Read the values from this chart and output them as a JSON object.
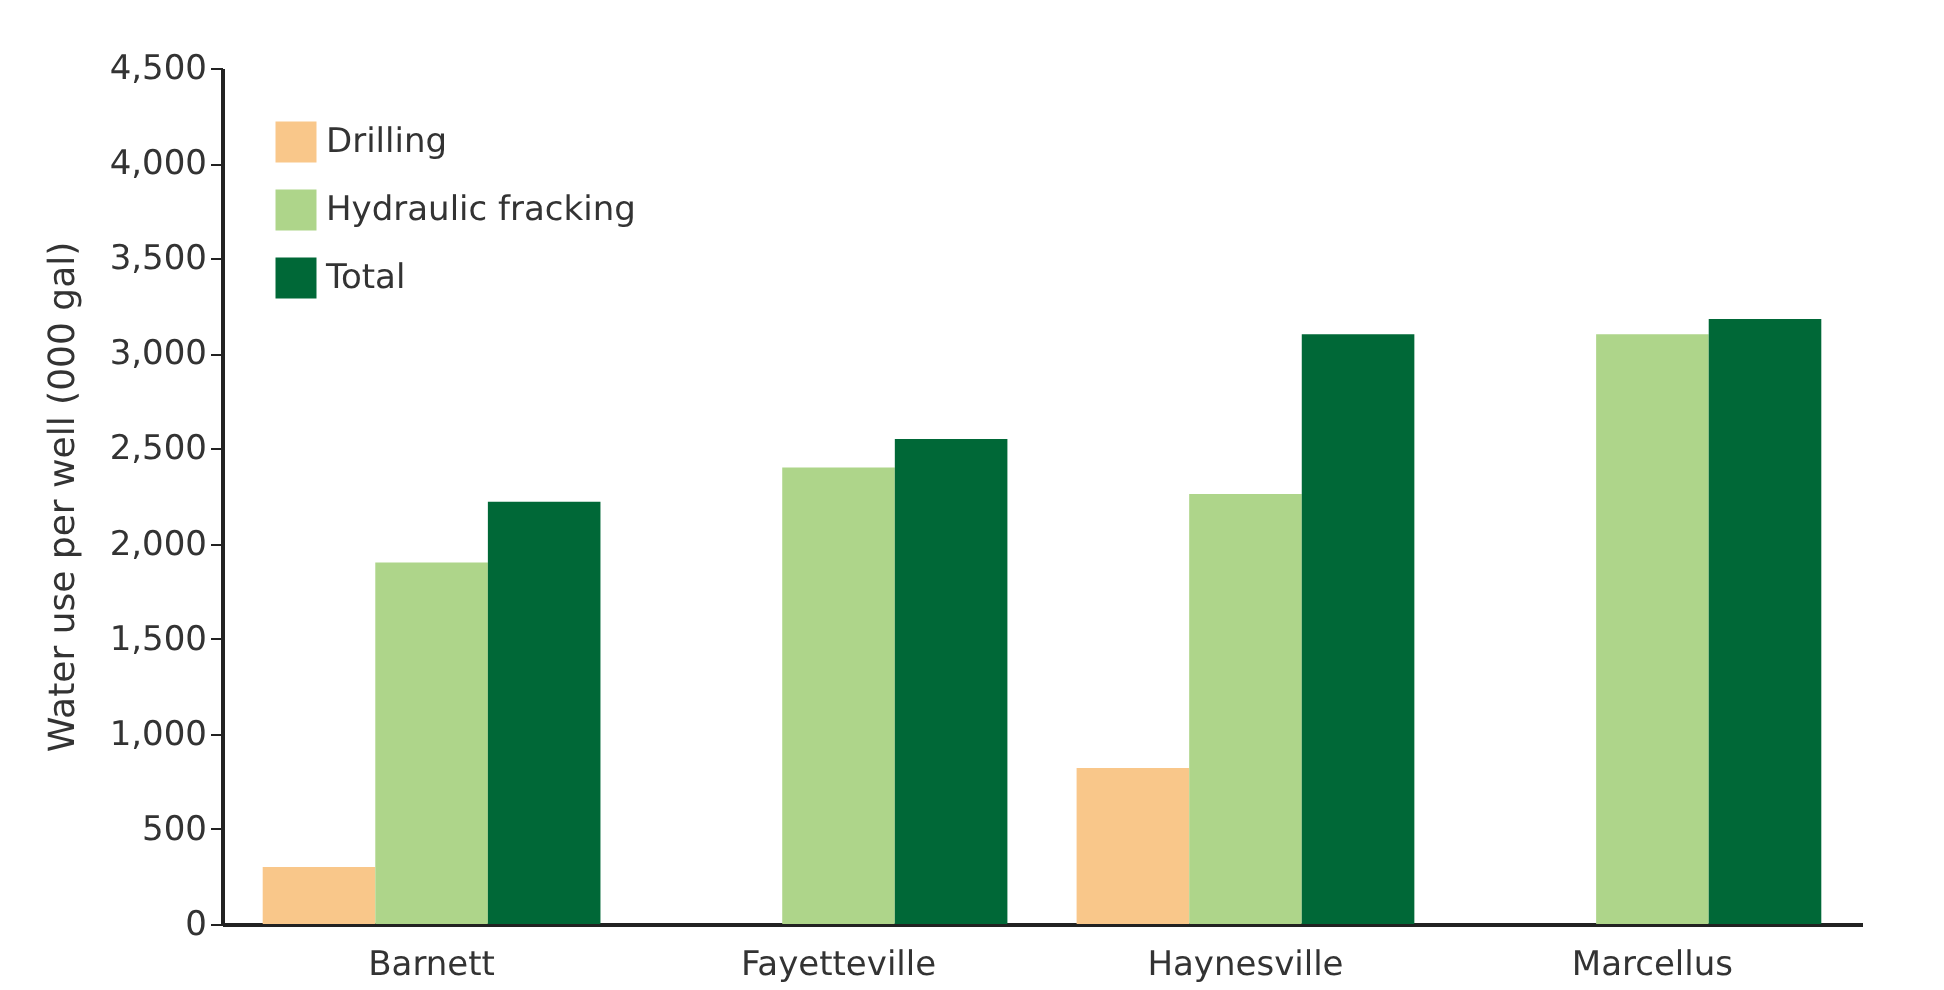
{
  "chart_data": {
    "type": "bar",
    "ylabel": "Water use per well (000 gal)",
    "categories": [
      "Barnett",
      "Fayetteville",
      "Haynesville",
      "Marcellus"
    ],
    "series": [
      {
        "name": "Drilling",
        "color": "#f9c78a",
        "values": [
          300,
          null,
          820,
          null
        ]
      },
      {
        "name": "Hydraulic fracking",
        "color": "#aed58a",
        "values": [
          1900,
          2400,
          2260,
          3100
        ]
      },
      {
        "name": "Total",
        "color": "#006837",
        "values": [
          2220,
          2550,
          3100,
          3180
        ]
      }
    ],
    "ylim": [
      0,
      4500
    ],
    "yticks": [
      0,
      {
        "value": 500,
        "label": "500"
      },
      {
        "value": 1000,
        "label": "1,000"
      },
      {
        "value": 1500,
        "label": "1,500"
      },
      {
        "value": 2000,
        "label": "2,000"
      },
      {
        "value": 2500,
        "label": "2,500"
      },
      {
        "value": 3000,
        "label": "3,000"
      },
      {
        "value": 3500,
        "label": "3,500"
      },
      {
        "value": 4000,
        "label": "4,000"
      },
      {
        "value": 4500,
        "label": "4,500"
      }
    ],
    "grid": false,
    "legend": "top left"
  }
}
